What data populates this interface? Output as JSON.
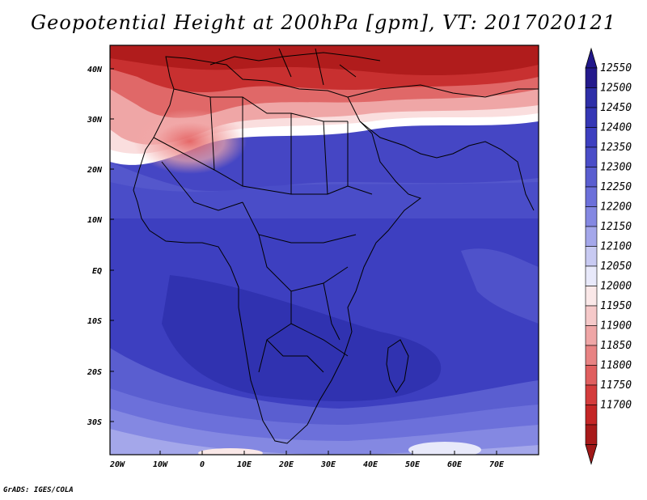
{
  "title": "Geopotential Height at 200hPa [gpm], VT: 2017020121",
  "credit": "GrADS: IGES/COLA",
  "map": {
    "lat_labels": [
      "40N",
      "30N",
      "20N",
      "10N",
      "EQ",
      "10S",
      "20S",
      "30S"
    ],
    "lon_labels": [
      "20W",
      "10W",
      "0",
      "10E",
      "20E",
      "30E",
      "40E",
      "50E",
      "60E",
      "70E"
    ]
  },
  "colorbar": {
    "labels": [
      "12550",
      "12500",
      "12450",
      "12400",
      "12350",
      "12300",
      "12250",
      "12200",
      "12150",
      "12100",
      "12050",
      "12000",
      "11950",
      "11900",
      "11850",
      "11800",
      "11750",
      "11700"
    ],
    "colors": [
      "#241a8c",
      "#2e2fa8",
      "#3537b5",
      "#3d3fc0",
      "#4a4dc8",
      "#5a5ed0",
      "#6c70da",
      "#8488e2",
      "#a4a7ea",
      "#c8caf2",
      "#e8e9fa",
      "#fae8e8",
      "#f5c9c9",
      "#efa6a6",
      "#e88383",
      "#e05f5f",
      "#d43c3c",
      "#c42626",
      "#a81a1a"
    ]
  }
}
